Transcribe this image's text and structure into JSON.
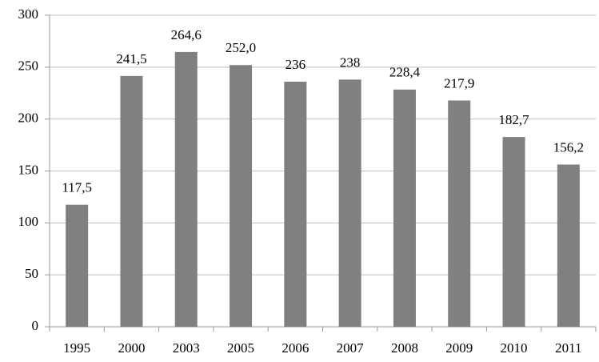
{
  "chart_data": {
    "type": "bar",
    "categories": [
      "1995",
      "2000",
      "2003",
      "2005",
      "2006",
      "2007",
      "2008",
      "2009",
      "2010",
      "2011"
    ],
    "values": [
      117.5,
      241.5,
      264.6,
      252.0,
      236,
      238,
      228.4,
      217.9,
      182.7,
      156.2
    ],
    "value_labels": [
      "117,5",
      "241,5",
      "264,6",
      "252,0",
      "236",
      "238",
      "228,4",
      "217,9",
      "182,7",
      "156,2"
    ],
    "color": "#808080",
    "ylim": [
      0,
      300
    ],
    "yticks": [
      0,
      50,
      100,
      150,
      200,
      250,
      300
    ],
    "grid": true
  }
}
